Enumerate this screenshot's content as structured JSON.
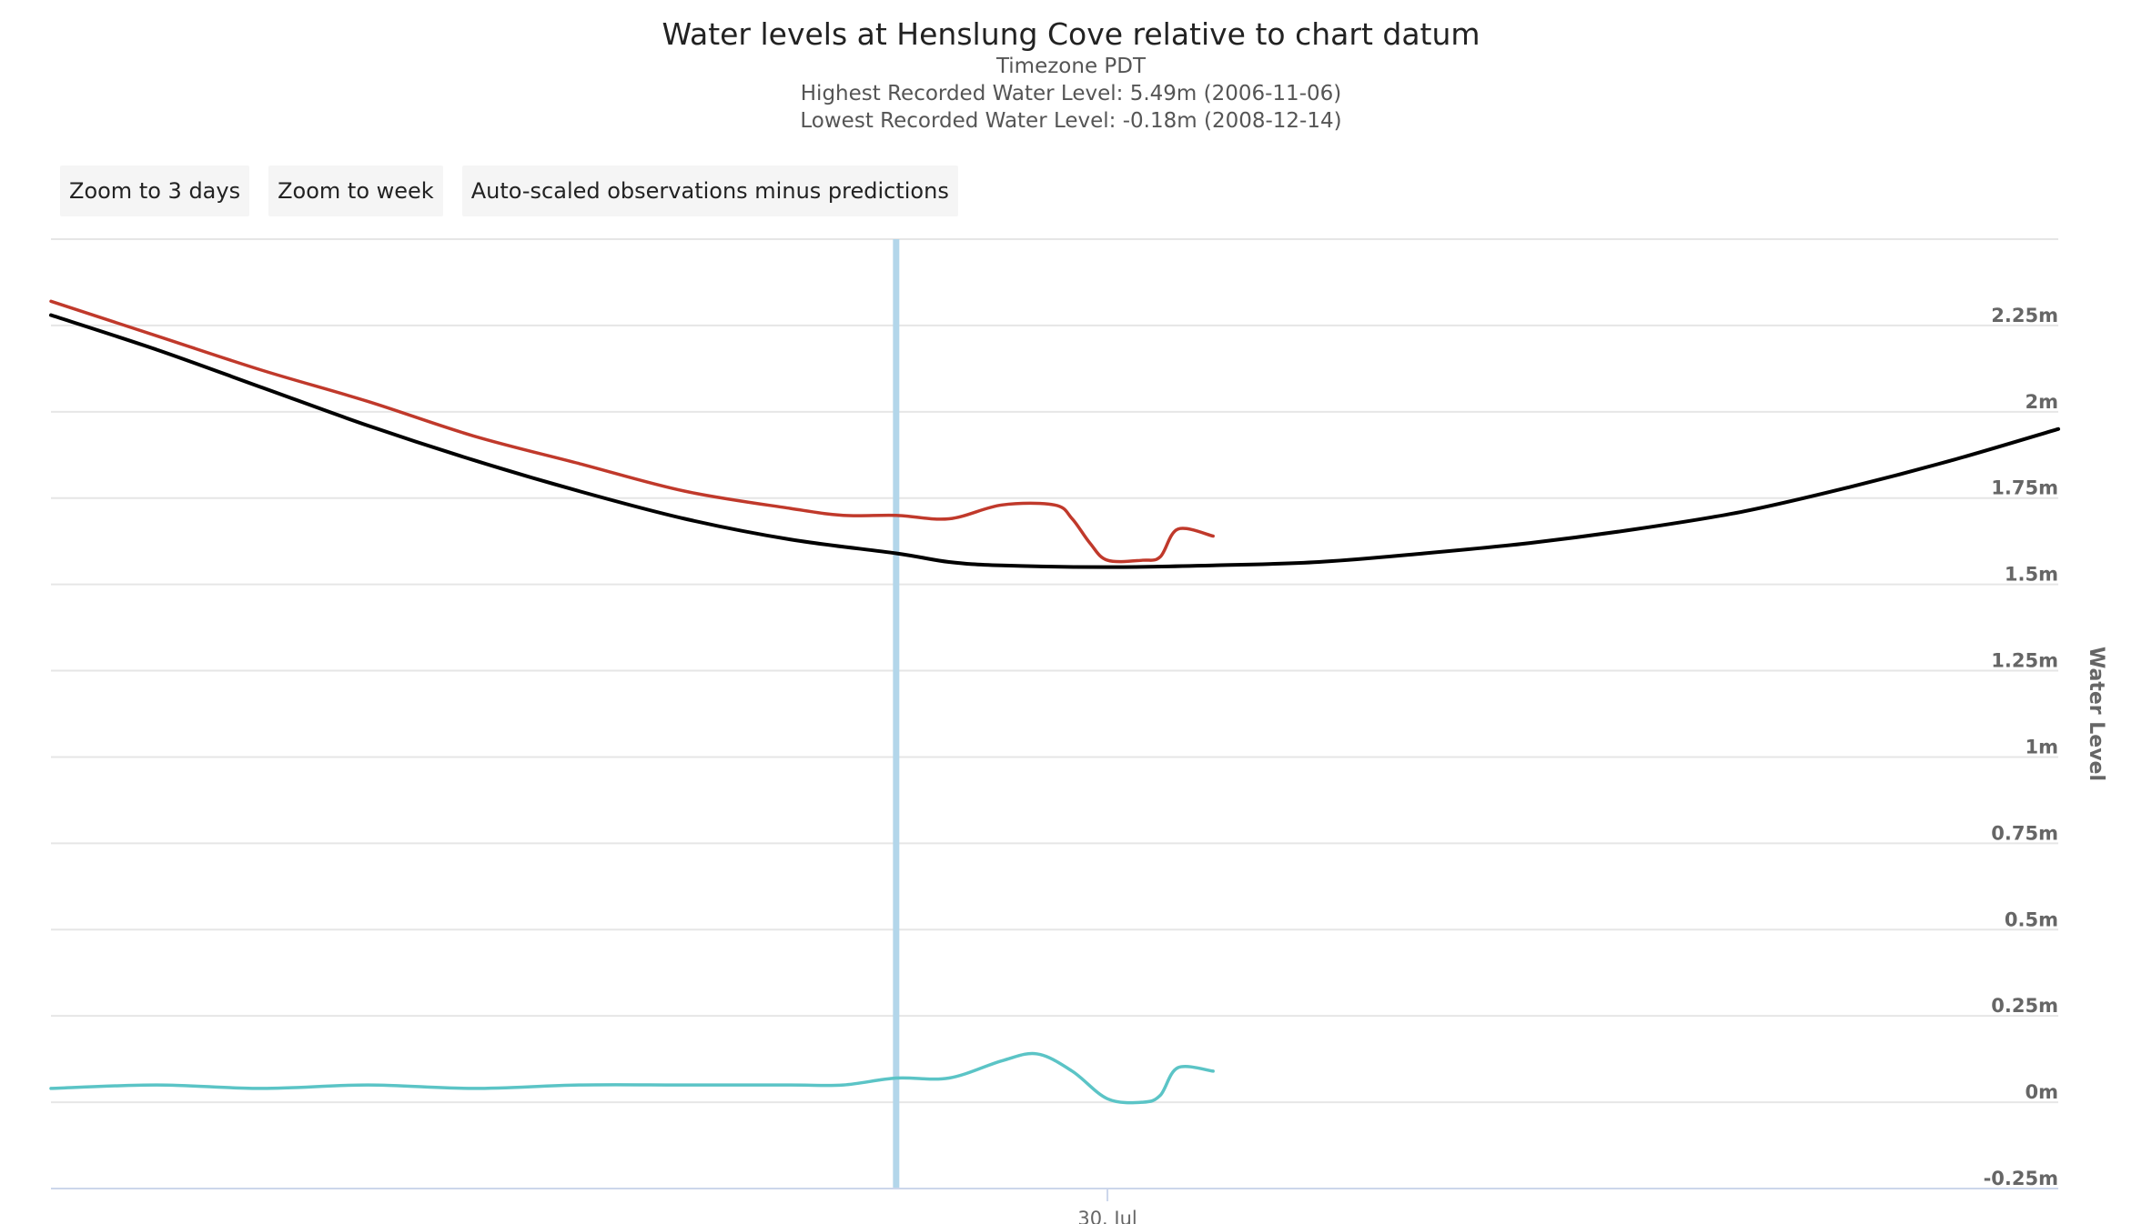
{
  "header": {
    "title": "Water levels at Henslung Cove relative to chart datum",
    "timezone": "Timezone PDT",
    "highest": "Highest Recorded Water Level: 5.49m (2006-11-06)",
    "lowest": "Lowest Recorded Water Level: -0.18m (2008-12-14)"
  },
  "buttons": {
    "zoom3": "Zoom to 3 days",
    "zoomWeek": "Zoom to week",
    "autoScaled": "Auto-scaled observations minus predictions"
  },
  "colors": {
    "observed": "#c0392b",
    "predicted": "#000000",
    "residual": "#5bc4c6",
    "now_line": "#b3d6ea",
    "grid": "#e6e6e6"
  },
  "chart_data": {
    "type": "line",
    "ylabel": "Water Level",
    "yunit": "m",
    "ylim": [
      -0.25,
      2.5
    ],
    "yticks": [
      -0.25,
      0,
      0.25,
      0.5,
      0.75,
      1,
      1.25,
      1.5,
      1.75,
      2,
      2.25
    ],
    "ytick_labels": [
      "-0.25m",
      "0m",
      "0.25m",
      "0.5m",
      "0.75m",
      "1m",
      "1.25m",
      "1.5m",
      "1.75m",
      "2m",
      "2.25m"
    ],
    "xlim": [
      "2024-07-29T19:00",
      "2024-07-30T04:30"
    ],
    "xticks": [
      {
        "x": "2024-07-30T00:00",
        "label": "30. Jul"
      }
    ],
    "current_time": "2024-07-29T23:00",
    "grid": true,
    "legend": "none",
    "series": [
      {
        "key": "predicted",
        "x": [
          "2024-07-29T19:00",
          "2024-07-29T19:30",
          "2024-07-29T20:00",
          "2024-07-29T20:30",
          "2024-07-29T21:00",
          "2024-07-29T21:30",
          "2024-07-29T22:00",
          "2024-07-29T22:30",
          "2024-07-29T23:00",
          "2024-07-29T23:15",
          "2024-07-29T23:30",
          "2024-07-30T00:00",
          "2024-07-30T00:30",
          "2024-07-30T01:00",
          "2024-07-30T01:30",
          "2024-07-30T02:00",
          "2024-07-30T02:30",
          "2024-07-30T03:00",
          "2024-07-30T03:30",
          "2024-07-30T04:00",
          "2024-07-30T04:30"
        ],
        "values": [
          2.28,
          2.18,
          2.07,
          1.96,
          1.86,
          1.77,
          1.69,
          1.63,
          1.59,
          1.565,
          1.555,
          1.55,
          1.555,
          1.565,
          1.59,
          1.62,
          1.66,
          1.71,
          1.78,
          1.86,
          1.95
        ]
      },
      {
        "key": "observed",
        "x": [
          "2024-07-29T19:00",
          "2024-07-29T19:30",
          "2024-07-29T20:00",
          "2024-07-29T20:30",
          "2024-07-29T21:00",
          "2024-07-29T21:30",
          "2024-07-29T22:00",
          "2024-07-29T22:30",
          "2024-07-29T22:45",
          "2024-07-29T23:00",
          "2024-07-29T23:15",
          "2024-07-29T23:30",
          "2024-07-29T23:45",
          "2024-07-29T23:50",
          "2024-07-29T23:55",
          "2024-07-30T00:00",
          "2024-07-30T00:10",
          "2024-07-30T00:15",
          "2024-07-30T00:20",
          "2024-07-30T00:30"
        ],
        "values": [
          2.32,
          2.22,
          2.12,
          2.03,
          1.93,
          1.85,
          1.77,
          1.72,
          1.7,
          1.7,
          1.69,
          1.73,
          1.73,
          1.69,
          1.62,
          1.57,
          1.57,
          1.58,
          1.66,
          1.64
        ]
      },
      {
        "key": "residual",
        "x": [
          "2024-07-29T19:00",
          "2024-07-29T19:30",
          "2024-07-29T20:00",
          "2024-07-29T20:30",
          "2024-07-29T21:00",
          "2024-07-29T21:30",
          "2024-07-29T22:00",
          "2024-07-29T22:30",
          "2024-07-29T22:45",
          "2024-07-29T23:00",
          "2024-07-29T23:15",
          "2024-07-29T23:30",
          "2024-07-29T23:40",
          "2024-07-29T23:50",
          "2024-07-30T00:00",
          "2024-07-30T00:10",
          "2024-07-30T00:15",
          "2024-07-30T00:20",
          "2024-07-30T00:30"
        ],
        "values": [
          0.04,
          0.05,
          0.04,
          0.05,
          0.04,
          0.05,
          0.05,
          0.05,
          0.05,
          0.07,
          0.07,
          0.12,
          0.14,
          0.09,
          0.01,
          0.0,
          0.02,
          0.1,
          0.09
        ]
      }
    ]
  }
}
